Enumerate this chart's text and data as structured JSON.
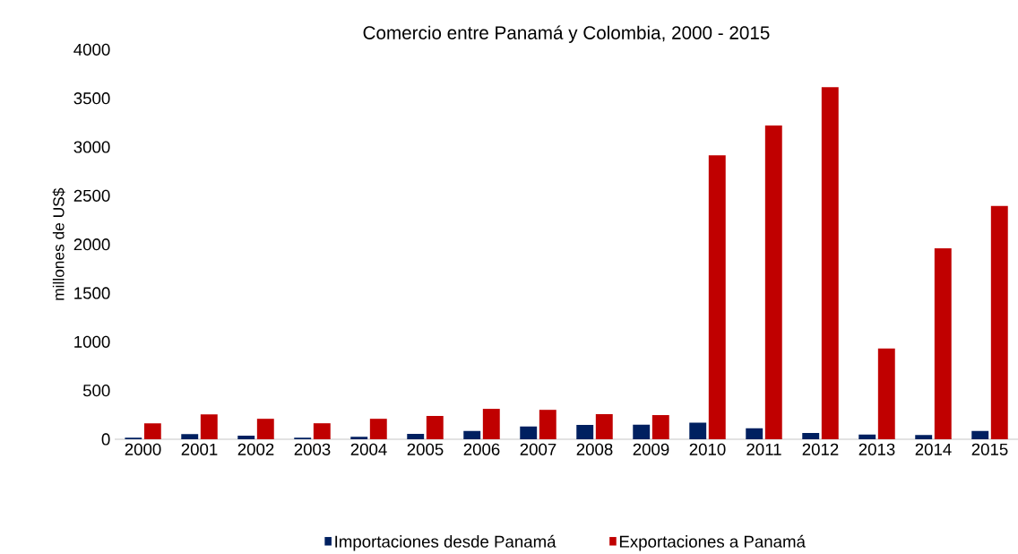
{
  "chart_data": {
    "type": "bar",
    "title": "Comercio entre Panamá y Colombia, 2000 - 2015",
    "ylabel": "millones de US$",
    "categories": [
      "2000",
      "2001",
      "2002",
      "2003",
      "2004",
      "2005",
      "2006",
      "2007",
      "2008",
      "2009",
      "2010",
      "2011",
      "2012",
      "2013",
      "2014",
      "2015"
    ],
    "series": [
      {
        "name": "Importaciones desde Panamá",
        "color": "#002060",
        "values": [
          16,
          52,
          36,
          16,
          26,
          55,
          85,
          130,
          147,
          150,
          171,
          113,
          64,
          49,
          43,
          86
        ]
      },
      {
        "name": "Exportaciones a Panamá",
        "color": "#c00000",
        "values": [
          164,
          256,
          210,
          164,
          210,
          239,
          312,
          302,
          258,
          248,
          2915,
          3220,
          3615,
          932,
          1960,
          2395
        ]
      }
    ],
    "ylim": [
      0,
      4000
    ],
    "yticks": [
      0,
      500,
      1000,
      1500,
      2000,
      2500,
      3000,
      3500,
      4000
    ],
    "grid": false,
    "legend": "bottom"
  }
}
